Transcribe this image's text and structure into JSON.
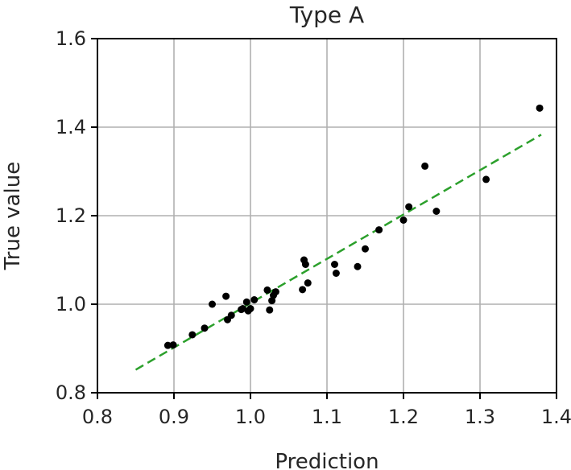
{
  "chart_data": {
    "type": "scatter",
    "title": "Type A",
    "xlabel": "Prediction",
    "ylabel": "True value",
    "xlim": [
      0.8,
      1.4
    ],
    "ylim": [
      0.8,
      1.6
    ],
    "xticks": [
      "0.8",
      "0.9",
      "1.0",
      "1.1",
      "1.2",
      "1.3",
      "1.4"
    ],
    "yticks": [
      "0.8",
      "1.0",
      "1.2",
      "1.4",
      "1.6"
    ],
    "grid": true,
    "point_color": "#000000",
    "fit_line_color": "#2ca02c",
    "points": [
      {
        "x": 0.892,
        "y": 0.907
      },
      {
        "x": 0.899,
        "y": 0.908
      },
      {
        "x": 0.924,
        "y": 0.931
      },
      {
        "x": 0.94,
        "y": 0.946
      },
      {
        "x": 0.95,
        "y": 1.0
      },
      {
        "x": 0.968,
        "y": 1.018
      },
      {
        "x": 0.97,
        "y": 0.965
      },
      {
        "x": 0.975,
        "y": 0.975
      },
      {
        "x": 0.988,
        "y": 0.988
      },
      {
        "x": 0.99,
        "y": 0.99
      },
      {
        "x": 0.995,
        "y": 1.005
      },
      {
        "x": 0.997,
        "y": 0.985
      },
      {
        "x": 1.0,
        "y": 0.99
      },
      {
        "x": 1.005,
        "y": 1.01
      },
      {
        "x": 1.022,
        "y": 1.032
      },
      {
        "x": 1.025,
        "y": 0.987
      },
      {
        "x": 1.028,
        "y": 1.008
      },
      {
        "x": 1.03,
        "y": 1.02
      },
      {
        "x": 1.033,
        "y": 1.028
      },
      {
        "x": 1.068,
        "y": 1.033
      },
      {
        "x": 1.07,
        "y": 1.1
      },
      {
        "x": 1.072,
        "y": 1.09
      },
      {
        "x": 1.075,
        "y": 1.048
      },
      {
        "x": 1.11,
        "y": 1.09
      },
      {
        "x": 1.112,
        "y": 1.07
      },
      {
        "x": 1.14,
        "y": 1.085
      },
      {
        "x": 1.15,
        "y": 1.125
      },
      {
        "x": 1.168,
        "y": 1.168
      },
      {
        "x": 1.2,
        "y": 1.19
      },
      {
        "x": 1.207,
        "y": 1.22
      },
      {
        "x": 1.228,
        "y": 1.312
      },
      {
        "x": 1.243,
        "y": 1.21
      },
      {
        "x": 1.308,
        "y": 1.282
      },
      {
        "x": 1.378,
        "y": 1.443
      }
    ],
    "fit_line": {
      "x": [
        0.85,
        1.38
      ],
      "y": [
        0.852,
        1.383
      ]
    }
  }
}
